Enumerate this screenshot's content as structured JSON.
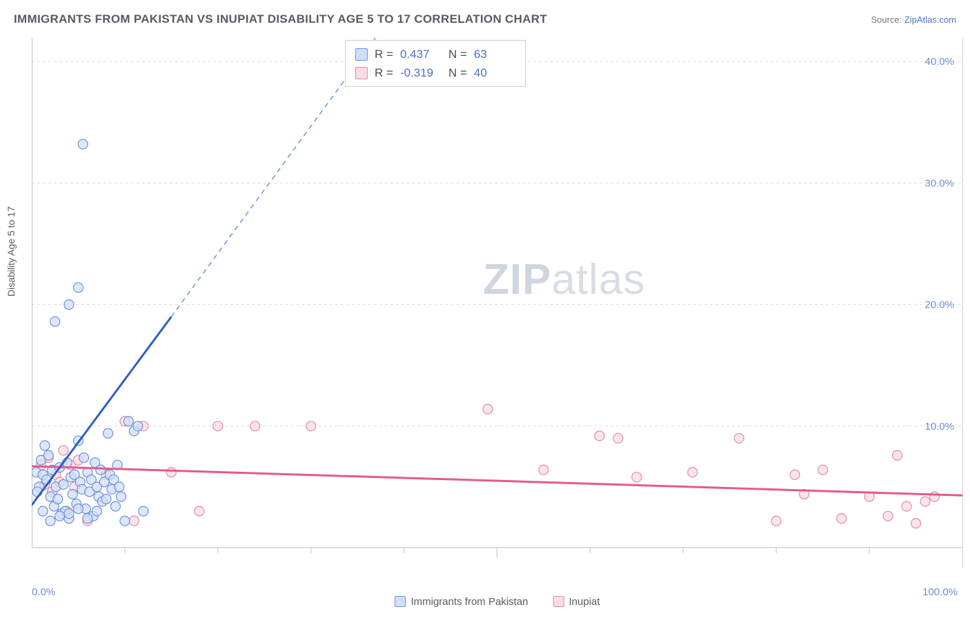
{
  "header": {
    "title": "IMMIGRANTS FROM PAKISTAN VS INUPIAT DISABILITY AGE 5 TO 17 CORRELATION CHART",
    "source_prefix": "Source: ",
    "source_name": "ZipAtlas.com"
  },
  "chart": {
    "type": "scatter",
    "ylabel": "Disability Age 5 to 17",
    "xlim": [
      0,
      100
    ],
    "ylim": [
      0,
      42
    ],
    "xtick_labels": {
      "min": "0.0%",
      "max": "100.0%"
    },
    "ytick_labels": [
      "10.0%",
      "20.0%",
      "30.0%",
      "40.0%"
    ],
    "ytick_values": [
      10,
      20,
      30,
      40
    ],
    "xtick_minor": [
      10,
      20,
      30,
      40,
      50,
      60,
      70,
      80,
      90
    ],
    "grid_color": "#d8d8d8",
    "grid_dash": "4 4",
    "axis_color": "#bfbfbf",
    "background_color": "#ffffff",
    "marker_radius": 7,
    "marker_stroke_width": 1.2,
    "series": [
      {
        "name": "Immigrants from Pakistan",
        "fill": "#d1defb",
        "stroke": "#6a93d6",
        "line_color": "#2d5fc1",
        "line_dash_color": "#6a93d6",
        "r_label": "R = ",
        "r_value": "0.437",
        "n_label": "N = ",
        "n_value": "63",
        "trend_solid": {
          "x1": 0,
          "y1": 3.5,
          "x2": 15,
          "y2": 19.0
        },
        "trend_dash": {
          "x1": 15,
          "y1": 19.0,
          "x2": 37,
          "y2": 42.0
        },
        "points": [
          [
            0.5,
            6.2
          ],
          [
            0.8,
            5.0
          ],
          [
            0.6,
            4.6
          ],
          [
            1.0,
            7.2
          ],
          [
            1.2,
            6.0
          ],
          [
            1.4,
            8.4
          ],
          [
            1.6,
            5.6
          ],
          [
            1.8,
            7.6
          ],
          [
            2.0,
            4.2
          ],
          [
            2.2,
            6.4
          ],
          [
            2.4,
            3.4
          ],
          [
            2.6,
            5.0
          ],
          [
            2.8,
            4.0
          ],
          [
            3.0,
            6.6
          ],
          [
            3.2,
            2.8
          ],
          [
            3.4,
            5.2
          ],
          [
            3.6,
            3.0
          ],
          [
            3.8,
            7.0
          ],
          [
            4.0,
            2.4
          ],
          [
            4.2,
            5.8
          ],
          [
            4.4,
            4.4
          ],
          [
            4.6,
            6.0
          ],
          [
            4.8,
            3.6
          ],
          [
            5.0,
            8.8
          ],
          [
            5.2,
            5.4
          ],
          [
            5.4,
            4.8
          ],
          [
            5.6,
            7.4
          ],
          [
            5.8,
            3.2
          ],
          [
            6.0,
            6.2
          ],
          [
            6.2,
            4.6
          ],
          [
            6.4,
            5.6
          ],
          [
            6.6,
            2.6
          ],
          [
            6.8,
            7.0
          ],
          [
            7.0,
            5.0
          ],
          [
            7.2,
            4.2
          ],
          [
            7.4,
            6.4
          ],
          [
            7.6,
            3.8
          ],
          [
            7.8,
            5.4
          ],
          [
            8.0,
            4.0
          ],
          [
            8.2,
            9.4
          ],
          [
            8.4,
            6.0
          ],
          [
            8.6,
            4.8
          ],
          [
            8.8,
            5.6
          ],
          [
            9.0,
            3.4
          ],
          [
            9.2,
            6.8
          ],
          [
            9.4,
            5.0
          ],
          [
            9.6,
            4.2
          ],
          [
            10.0,
            2.2
          ],
          [
            10.4,
            10.4
          ],
          [
            11.0,
            9.6
          ],
          [
            11.4,
            10.0
          ],
          [
            12.0,
            3.0
          ],
          [
            2.5,
            18.6
          ],
          [
            4.0,
            20.0
          ],
          [
            5.0,
            21.4
          ],
          [
            5.5,
            33.2
          ],
          [
            1.2,
            3.0
          ],
          [
            2.0,
            2.2
          ],
          [
            3.0,
            2.6
          ],
          [
            4.0,
            2.8
          ],
          [
            5.0,
            3.2
          ],
          [
            6.0,
            2.4
          ],
          [
            7.0,
            3.0
          ]
        ]
      },
      {
        "name": "Inupiat",
        "fill": "#fbdbe4",
        "stroke": "#e48aa7",
        "line_color": "#e55989",
        "r_label": "R = ",
        "r_value": "-0.319",
        "n_label": "N = ",
        "n_value": "40",
        "trend_solid": {
          "x1": 0,
          "y1": 6.7,
          "x2": 100,
          "y2": 4.3
        },
        "points": [
          [
            1.0,
            6.8
          ],
          [
            1.4,
            5.2
          ],
          [
            1.8,
            7.4
          ],
          [
            2.2,
            4.6
          ],
          [
            2.6,
            6.0
          ],
          [
            3.0,
            5.4
          ],
          [
            3.4,
            8.0
          ],
          [
            3.8,
            3.0
          ],
          [
            4.2,
            6.8
          ],
          [
            4.6,
            5.0
          ],
          [
            5.0,
            7.2
          ],
          [
            6.0,
            2.2
          ],
          [
            8.0,
            6.0
          ],
          [
            10.0,
            10.4
          ],
          [
            11.0,
            2.2
          ],
          [
            12.0,
            10.0
          ],
          [
            15.0,
            6.2
          ],
          [
            18.0,
            3.0
          ],
          [
            20.0,
            10.0
          ],
          [
            24.0,
            10.0
          ],
          [
            30.0,
            10.0
          ],
          [
            49.0,
            11.4
          ],
          [
            55.0,
            6.4
          ],
          [
            61.0,
            9.2
          ],
          [
            63.0,
            9.0
          ],
          [
            65.0,
            5.8
          ],
          [
            71.0,
            6.2
          ],
          [
            76.0,
            9.0
          ],
          [
            80.0,
            2.2
          ],
          [
            82.0,
            6.0
          ],
          [
            83.0,
            4.4
          ],
          [
            85.0,
            6.4
          ],
          [
            87.0,
            2.4
          ],
          [
            90.0,
            4.2
          ],
          [
            92.0,
            2.6
          ],
          [
            93.0,
            7.6
          ],
          [
            94.0,
            3.4
          ],
          [
            95.0,
            2.0
          ],
          [
            96.0,
            3.8
          ],
          [
            97.0,
            4.2
          ]
        ]
      }
    ]
  },
  "xlegend": {
    "items": [
      {
        "label": "Immigrants from Pakistan",
        "fill": "#d1defb",
        "stroke": "#6a93d6"
      },
      {
        "label": "Inupiat",
        "fill": "#fbdbe4",
        "stroke": "#e48aa7"
      }
    ]
  },
  "watermark": {
    "bold": "ZIP",
    "rest": "atlas"
  }
}
